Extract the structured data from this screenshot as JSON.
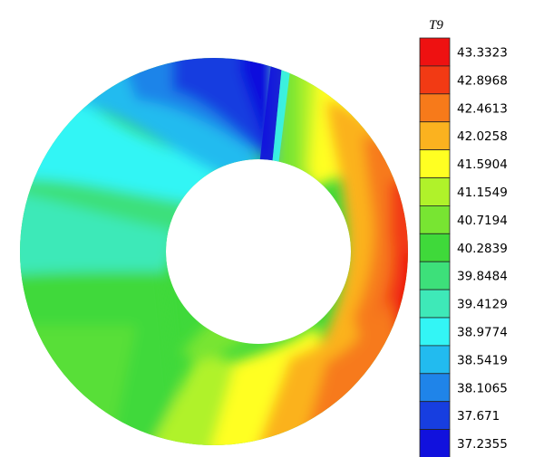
{
  "legend": {
    "title": "T9",
    "levels": [
      {
        "value": "43.3323",
        "color": "#ee1111"
      },
      {
        "value": "42.8968",
        "color": "#f23a14"
      },
      {
        "value": "42.4613",
        "color": "#f77a1a"
      },
      {
        "value": "42.0258",
        "color": "#fbb21f"
      },
      {
        "value": "41.5904",
        "color": "#ffff22"
      },
      {
        "value": "41.1549",
        "color": "#b0f22a"
      },
      {
        "value": "40.7194",
        "color": "#78e532"
      },
      {
        "value": "40.2839",
        "color": "#3fd93a"
      },
      {
        "value": "39.8484",
        "color": "#3de07a"
      },
      {
        "value": "39.4129",
        "color": "#3ee9b8"
      },
      {
        "value": "38.9774",
        "color": "#33f5f5"
      },
      {
        "value": "38.5419",
        "color": "#22bbef"
      },
      {
        "value": "38.1065",
        "color": "#1f84e9"
      },
      {
        "value": "37.671",
        "color": "#173ee0"
      },
      {
        "value": "37.2355",
        "color": "#1111dd"
      }
    ]
  }
}
